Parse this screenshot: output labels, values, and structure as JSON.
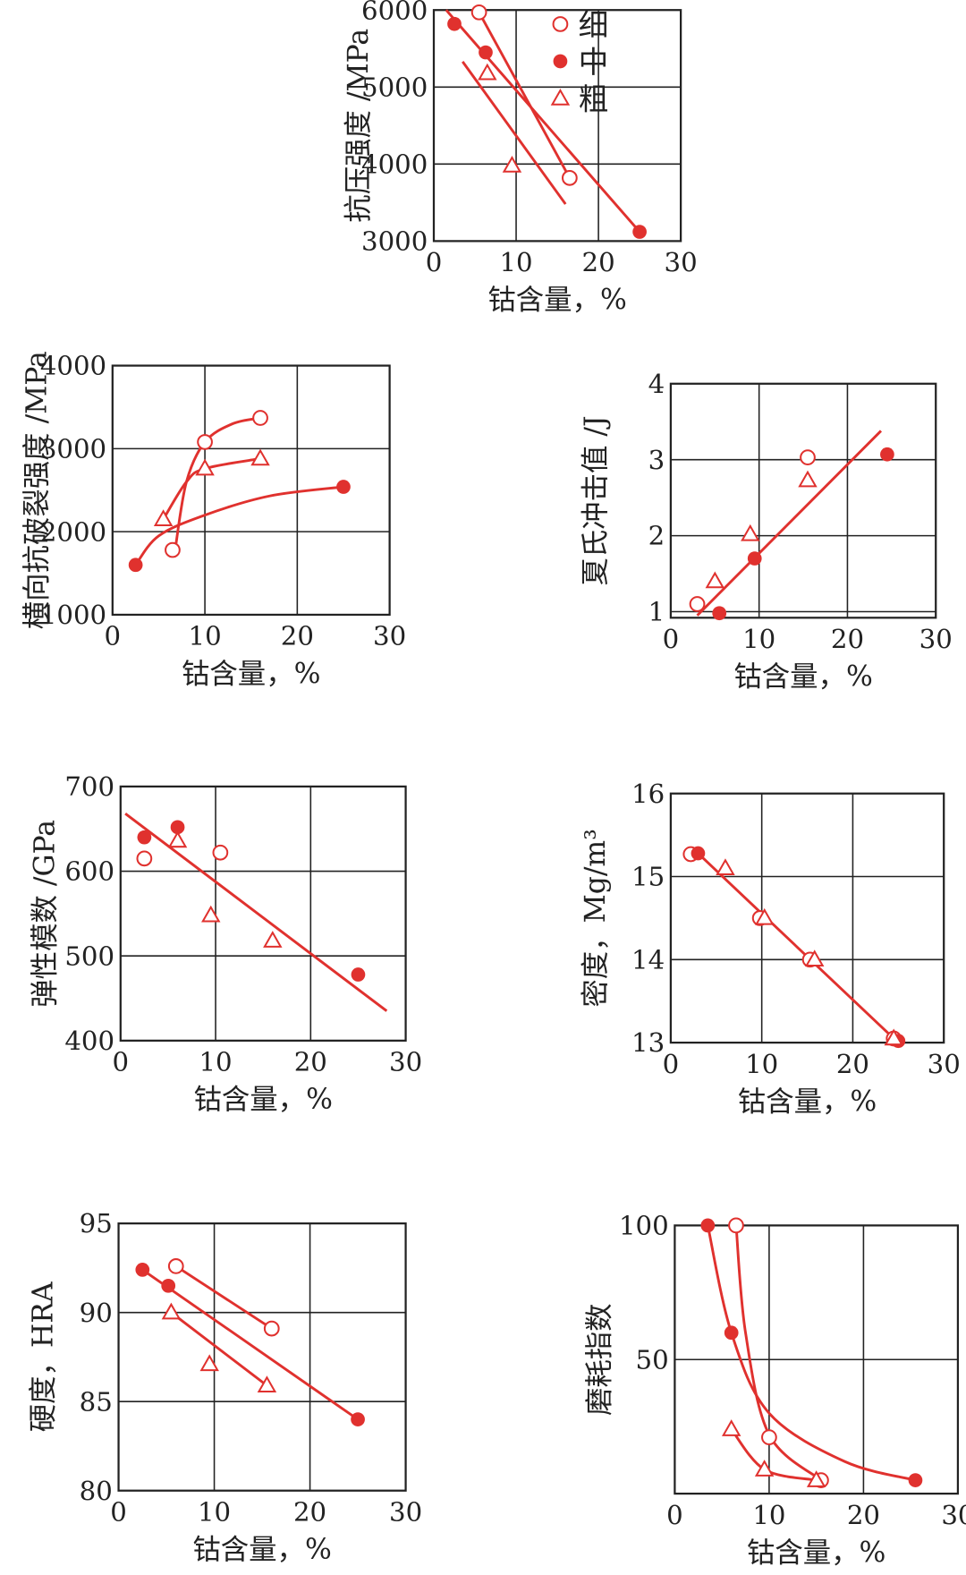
{
  "colors": {
    "series": "#e0312e",
    "axis": "#222222"
  },
  "legend": [
    {
      "label": "细",
      "marker": "open-circle"
    },
    {
      "label": "中",
      "marker": "filled-circle"
    },
    {
      "label": "粗",
      "marker": "open-triangle"
    }
  ],
  "chart_data": [
    {
      "type": "scatter",
      "xlabel": "钴含量，%",
      "ylabel": "抗压强度 /MPa",
      "xlim": [
        0,
        30
      ],
      "ylim": [
        3000,
        6000
      ],
      "xticks": [
        0,
        10,
        20,
        30
      ],
      "yticks": [
        3000,
        4000,
        5000,
        6000
      ],
      "grid": true,
      "legend": "top-right",
      "series": [
        {
          "name": "细",
          "points": [
            [
              5.5,
              5970
            ],
            [
              16.5,
              3820
            ]
          ],
          "fit": [
            [
              5.5,
              5970
            ],
            [
              16.5,
              3820
            ]
          ]
        },
        {
          "name": "中",
          "points": [
            [
              2.5,
              5820
            ],
            [
              6.3,
              5450
            ],
            [
              25,
              3120
            ]
          ],
          "fit": [
            [
              1.5,
              6000
            ],
            [
              25,
              3120
            ]
          ]
        },
        {
          "name": "粗",
          "points": [
            [
              6.5,
              5180
            ],
            [
              9.5,
              3980
            ]
          ],
          "fit": [
            [
              3.5,
              5330
            ],
            [
              16,
              3480
            ]
          ]
        }
      ]
    },
    {
      "type": "scatter",
      "xlabel": "钴含量，%",
      "ylabel": "横向抗破裂强度 /MPa",
      "xlim": [
        0,
        30
      ],
      "ylim": [
        1000,
        4000
      ],
      "xticks": [
        0,
        10,
        20,
        30
      ],
      "yticks": [
        1000,
        2000,
        3000,
        4000
      ],
      "grid": true,
      "series": [
        {
          "name": "细",
          "points": [
            [
              6.5,
              1780
            ],
            [
              10,
              3080
            ],
            [
              16,
              3370
            ]
          ],
          "fit": [
            [
              6.8,
              1800
            ],
            [
              8,
              2600
            ],
            [
              10,
              3080
            ],
            [
              13,
              3300
            ],
            [
              16,
              3370
            ]
          ]
        },
        {
          "name": "中",
          "points": [
            [
              2.5,
              1600
            ],
            [
              25,
              2540
            ]
          ],
          "fit": [
            [
              2.5,
              1600
            ],
            [
              5,
              1950
            ],
            [
              10,
              2200
            ],
            [
              17,
              2430
            ],
            [
              25,
              2540
            ]
          ]
        },
        {
          "name": "粗",
          "points": [
            [
              5.5,
              2150
            ],
            [
              10,
              2760
            ],
            [
              16,
              2880
            ]
          ],
          "fit": [
            [
              5.5,
              2150
            ],
            [
              8,
              2600
            ],
            [
              10,
              2760
            ],
            [
              16,
              2880
            ]
          ]
        }
      ]
    },
    {
      "type": "scatter",
      "xlabel": "钴含量，%",
      "ylabel": "夏氏冲击值 /J",
      "xlim": [
        0,
        30
      ],
      "ylim": [
        0.92,
        4
      ],
      "xticks": [
        0,
        10,
        20,
        30
      ],
      "yticks": [
        1,
        2,
        3,
        4
      ],
      "grid": true,
      "series": [
        {
          "name": "细",
          "points": [
            [
              3,
              1.1
            ],
            [
              15.5,
              3.03
            ]
          ]
        },
        {
          "name": "中",
          "points": [
            [
              5.5,
              0.98
            ],
            [
              9.5,
              1.7
            ],
            [
              24.5,
              3.07
            ]
          ],
          "fit": [
            [
              3,
              0.95
            ],
            [
              23.8,
              3.38
            ]
          ]
        },
        {
          "name": "粗",
          "points": [
            [
              5,
              1.4
            ],
            [
              9,
              2.02
            ],
            [
              15.5,
              2.73
            ]
          ]
        }
      ]
    },
    {
      "type": "scatter",
      "xlabel": "钴含量，%",
      "ylabel": "弹性模数 /GPa",
      "xlim": [
        0,
        30
      ],
      "ylim": [
        400,
        700
      ],
      "xticks": [
        0,
        10,
        20,
        30
      ],
      "yticks": [
        400,
        500,
        600,
        700
      ],
      "grid": true,
      "series": [
        {
          "name": "细",
          "points": [
            [
              2.5,
              615
            ],
            [
              10.5,
              622
            ]
          ]
        },
        {
          "name": "中",
          "points": [
            [
              2.5,
              640
            ],
            [
              6,
              652
            ],
            [
              25,
              478
            ]
          ],
          "fit": [
            [
              0.5,
              668
            ],
            [
              28,
              435
            ]
          ]
        },
        {
          "name": "粗",
          "points": [
            [
              6,
              636
            ],
            [
              9.5,
              548
            ],
            [
              16,
              518
            ]
          ]
        }
      ]
    },
    {
      "type": "scatter",
      "xlabel": "钴含量，%",
      "ylabel": "密度，Mg/m³",
      "xlim": [
        0,
        30
      ],
      "ylim": [
        13,
        16
      ],
      "xticks": [
        0,
        10,
        20,
        30
      ],
      "yticks": [
        13,
        14,
        15,
        16
      ],
      "grid": true,
      "series": [
        {
          "name": "细",
          "points": [
            [
              2.2,
              15.27
            ],
            [
              9.8,
              14.5
            ],
            [
              15.3,
              14.0
            ],
            [
              24.5,
              13.05
            ]
          ]
        },
        {
          "name": "中",
          "points": [
            [
              3,
              15.28
            ],
            [
              25,
              13.02
            ]
          ],
          "fit": [
            [
              3,
              15.28
            ],
            [
              24.5,
              13.05
            ]
          ]
        },
        {
          "name": "粗",
          "points": [
            [
              6,
              15.1
            ],
            [
              10.3,
              14.5
            ],
            [
              15.8,
              14.0
            ],
            [
              24.5,
              13.05
            ]
          ]
        }
      ]
    },
    {
      "type": "scatter",
      "xlabel": "钴含量，%",
      "ylabel": "硬度，HRA",
      "xlim": [
        0,
        30
      ],
      "ylim": [
        80,
        95
      ],
      "xticks": [
        0,
        10,
        20,
        30
      ],
      "yticks": [
        80,
        85,
        90,
        95
      ],
      "grid": true,
      "series": [
        {
          "name": "细",
          "points": [
            [
              6,
              92.6
            ],
            [
              16,
              89.1
            ]
          ],
          "fit": [
            [
              6,
              92.6
            ],
            [
              16,
              89.1
            ]
          ]
        },
        {
          "name": "中",
          "points": [
            [
              2.5,
              92.4
            ],
            [
              5.2,
              91.5
            ],
            [
              25,
              84
            ]
          ],
          "fit": [
            [
              2.5,
              92.4
            ],
            [
              25,
              84
            ]
          ]
        },
        {
          "name": "粗",
          "points": [
            [
              5.5,
              90
            ],
            [
              9.5,
              87.1
            ],
            [
              15.5,
              85.9
            ]
          ],
          "fit": [
            [
              5.5,
              90
            ],
            [
              15.5,
              85.9
            ]
          ]
        }
      ]
    },
    {
      "type": "scatter",
      "xlabel": "钴含量，%",
      "ylabel": "磨耗指数",
      "xlim": [
        0,
        30
      ],
      "ylim": [
        0,
        100
      ],
      "xticks": [
        0,
        10,
        20,
        30
      ],
      "yticks": [
        50,
        100
      ],
      "grid": true,
      "series": [
        {
          "name": "细",
          "points": [
            [
              6.5,
              100
            ],
            [
              10,
              21
            ],
            [
              15.5,
              5
            ]
          ],
          "fit": [
            [
              6.5,
              100
            ],
            [
              7.5,
              60
            ],
            [
              10,
              22
            ],
            [
              15.5,
              5
            ]
          ]
        },
        {
          "name": "中",
          "points": [
            [
              3.5,
              100
            ],
            [
              6,
              60
            ],
            [
              25.5,
              5
            ]
          ],
          "fit": [
            [
              3.5,
              100
            ],
            [
              6,
              60
            ],
            [
              10,
              30
            ],
            [
              18,
              12
            ],
            [
              25.5,
              5
            ]
          ]
        },
        {
          "name": "粗",
          "points": [
            [
              6,
              24
            ],
            [
              9.5,
              9
            ],
            [
              15,
              5
            ]
          ],
          "fit": [
            [
              6,
              24
            ],
            [
              9.5,
              9
            ],
            [
              15,
              5
            ]
          ]
        }
      ]
    }
  ]
}
